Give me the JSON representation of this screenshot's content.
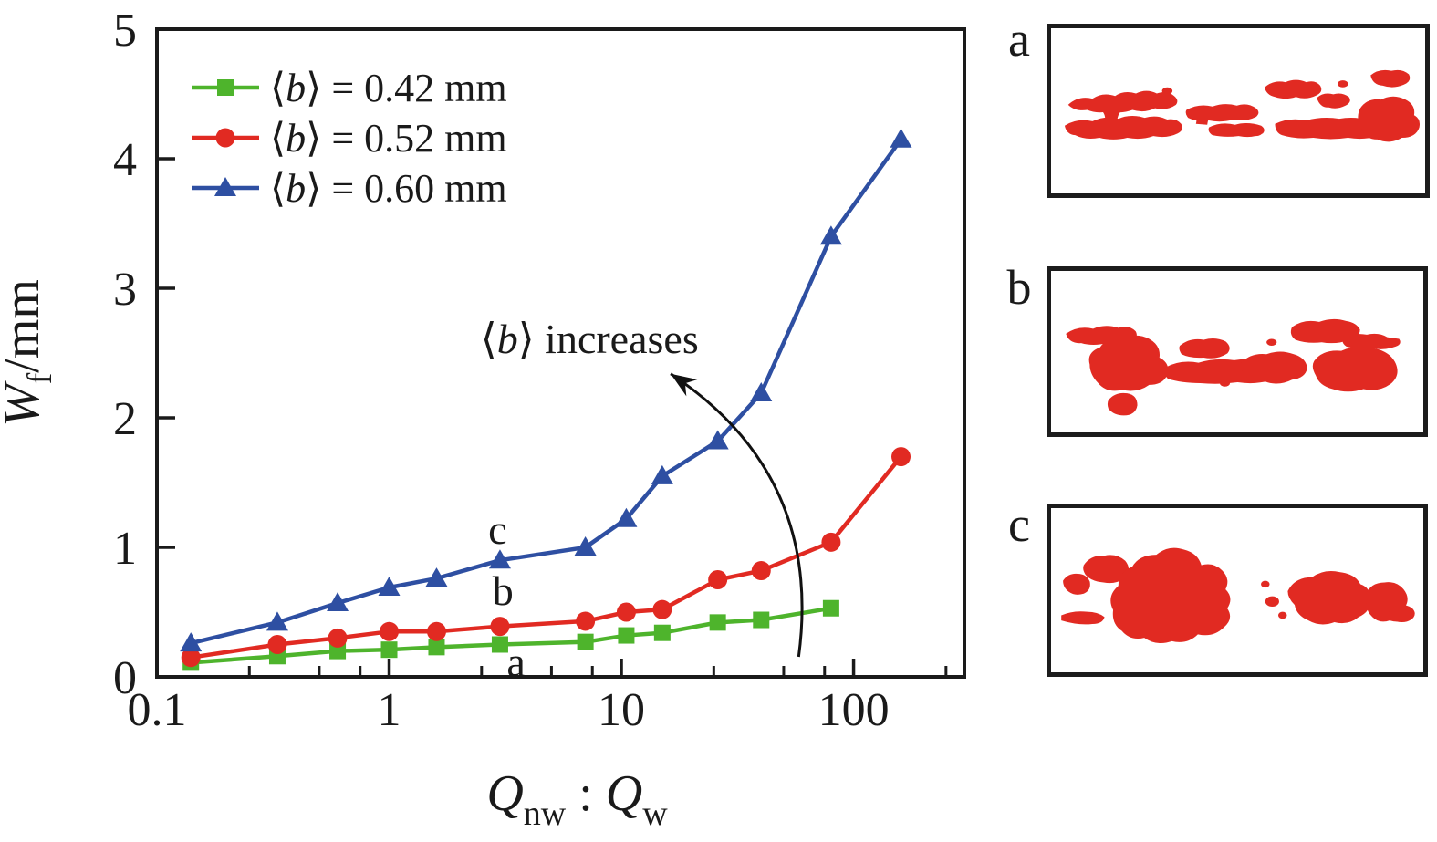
{
  "figure": {
    "background": "#ffffff",
    "text_color": "#1a1a1a"
  },
  "chart_data": {
    "type": "line",
    "x_scale": "log",
    "xlim": [
      0.1,
      300
    ],
    "ylim": [
      0,
      5
    ],
    "grid": false,
    "x_ticks_major": [
      0.1,
      1,
      10,
      100
    ],
    "x_tick_labels": [
      "0.1",
      "1",
      "10",
      "100"
    ],
    "x_ticks_minor": [
      0.25,
      0.5,
      0.75,
      2.5,
      5,
      7.5,
      25,
      50,
      75,
      250
    ],
    "y_ticks": [
      0,
      1,
      2,
      3,
      4,
      5
    ],
    "y_tick_labels": [
      "0",
      "1",
      "2",
      "3",
      "4",
      "5"
    ],
    "xlabel_text": "Qnw : Qw",
    "xlabel_parts": [
      [
        "Q",
        "i"
      ],
      [
        "nw",
        "sub"
      ],
      [
        " : ",
        ""
      ],
      [
        "Q",
        "i"
      ],
      [
        "w",
        "sub"
      ]
    ],
    "ylabel_text": "Wf/mm",
    "ylabel_parts": [
      [
        "W",
        "i"
      ],
      [
        "f",
        "sub"
      ],
      [
        "/mm",
        ""
      ]
    ],
    "legend_position": "top-left-inside",
    "series": [
      {
        "name": "⟨b⟩ = 0.42 mm",
        "label_parts": [
          [
            "⟨",
            ""
          ],
          [
            "b",
            "i"
          ],
          [
            "⟩ = 0.42 mm",
            ""
          ]
        ],
        "color": "#4eb42c",
        "marker": "square",
        "x": [
          0.14,
          0.33,
          0.6,
          1,
          1.6,
          3,
          7,
          10.5,
          15,
          26,
          40,
          80
        ],
        "y": [
          0.11,
          0.16,
          0.2,
          0.21,
          0.23,
          0.25,
          0.27,
          0.32,
          0.34,
          0.42,
          0.44,
          0.53
        ]
      },
      {
        "name": "⟨b⟩ = 0.52 mm",
        "label_parts": [
          [
            "⟨",
            ""
          ],
          [
            "b",
            "i"
          ],
          [
            "⟩ = 0.52 mm",
            ""
          ]
        ],
        "color": "#e12a22",
        "marker": "circle",
        "x": [
          0.14,
          0.33,
          0.6,
          1,
          1.6,
          3,
          7,
          10.5,
          15,
          26,
          40,
          80,
          160
        ],
        "y": [
          0.15,
          0.25,
          0.3,
          0.35,
          0.35,
          0.39,
          0.43,
          0.5,
          0.52,
          0.75,
          0.82,
          1.04,
          1.7
        ]
      },
      {
        "name": "⟨b⟩ = 0.60 mm",
        "label_parts": [
          [
            "⟨",
            ""
          ],
          [
            "b",
            "i"
          ],
          [
            "⟩ = 0.60 mm",
            ""
          ]
        ],
        "color": "#2e4fa2",
        "marker": "triangle",
        "x": [
          0.14,
          0.33,
          0.6,
          1,
          1.6,
          3,
          7,
          10.5,
          15,
          26,
          40,
          80,
          160
        ],
        "y": [
          0.26,
          0.42,
          0.57,
          0.69,
          0.76,
          0.9,
          1.0,
          1.22,
          1.55,
          1.82,
          2.19,
          3.4,
          4.15
        ]
      }
    ],
    "curve_labels": [
      {
        "text": "c",
        "x": 2.93,
        "y": 1.14
      },
      {
        "text": "b",
        "x": 3.09,
        "y": 0.67
      },
      {
        "text": "a",
        "x": 3.52,
        "y": 0.12
      }
    ],
    "annotation": {
      "text": "⟨b⟩ increases",
      "text_parts": [
        [
          "⟨",
          ""
        ],
        [
          "b",
          "i"
        ],
        [
          "⟩ increases",
          ""
        ]
      ],
      "text_x": 7.3,
      "text_y": 2.6,
      "arrow_tail": [
        58,
        0.155
      ],
      "arrow_ctrl": [
        74,
        1.56
      ],
      "arrow_head": [
        16.3,
        2.34
      ]
    }
  },
  "panels": [
    {
      "label": "a",
      "pattern_color": "#e12a22"
    },
    {
      "label": "b",
      "pattern_color": "#e12a22"
    },
    {
      "label": "c",
      "pattern_color": "#e12a22"
    }
  ]
}
